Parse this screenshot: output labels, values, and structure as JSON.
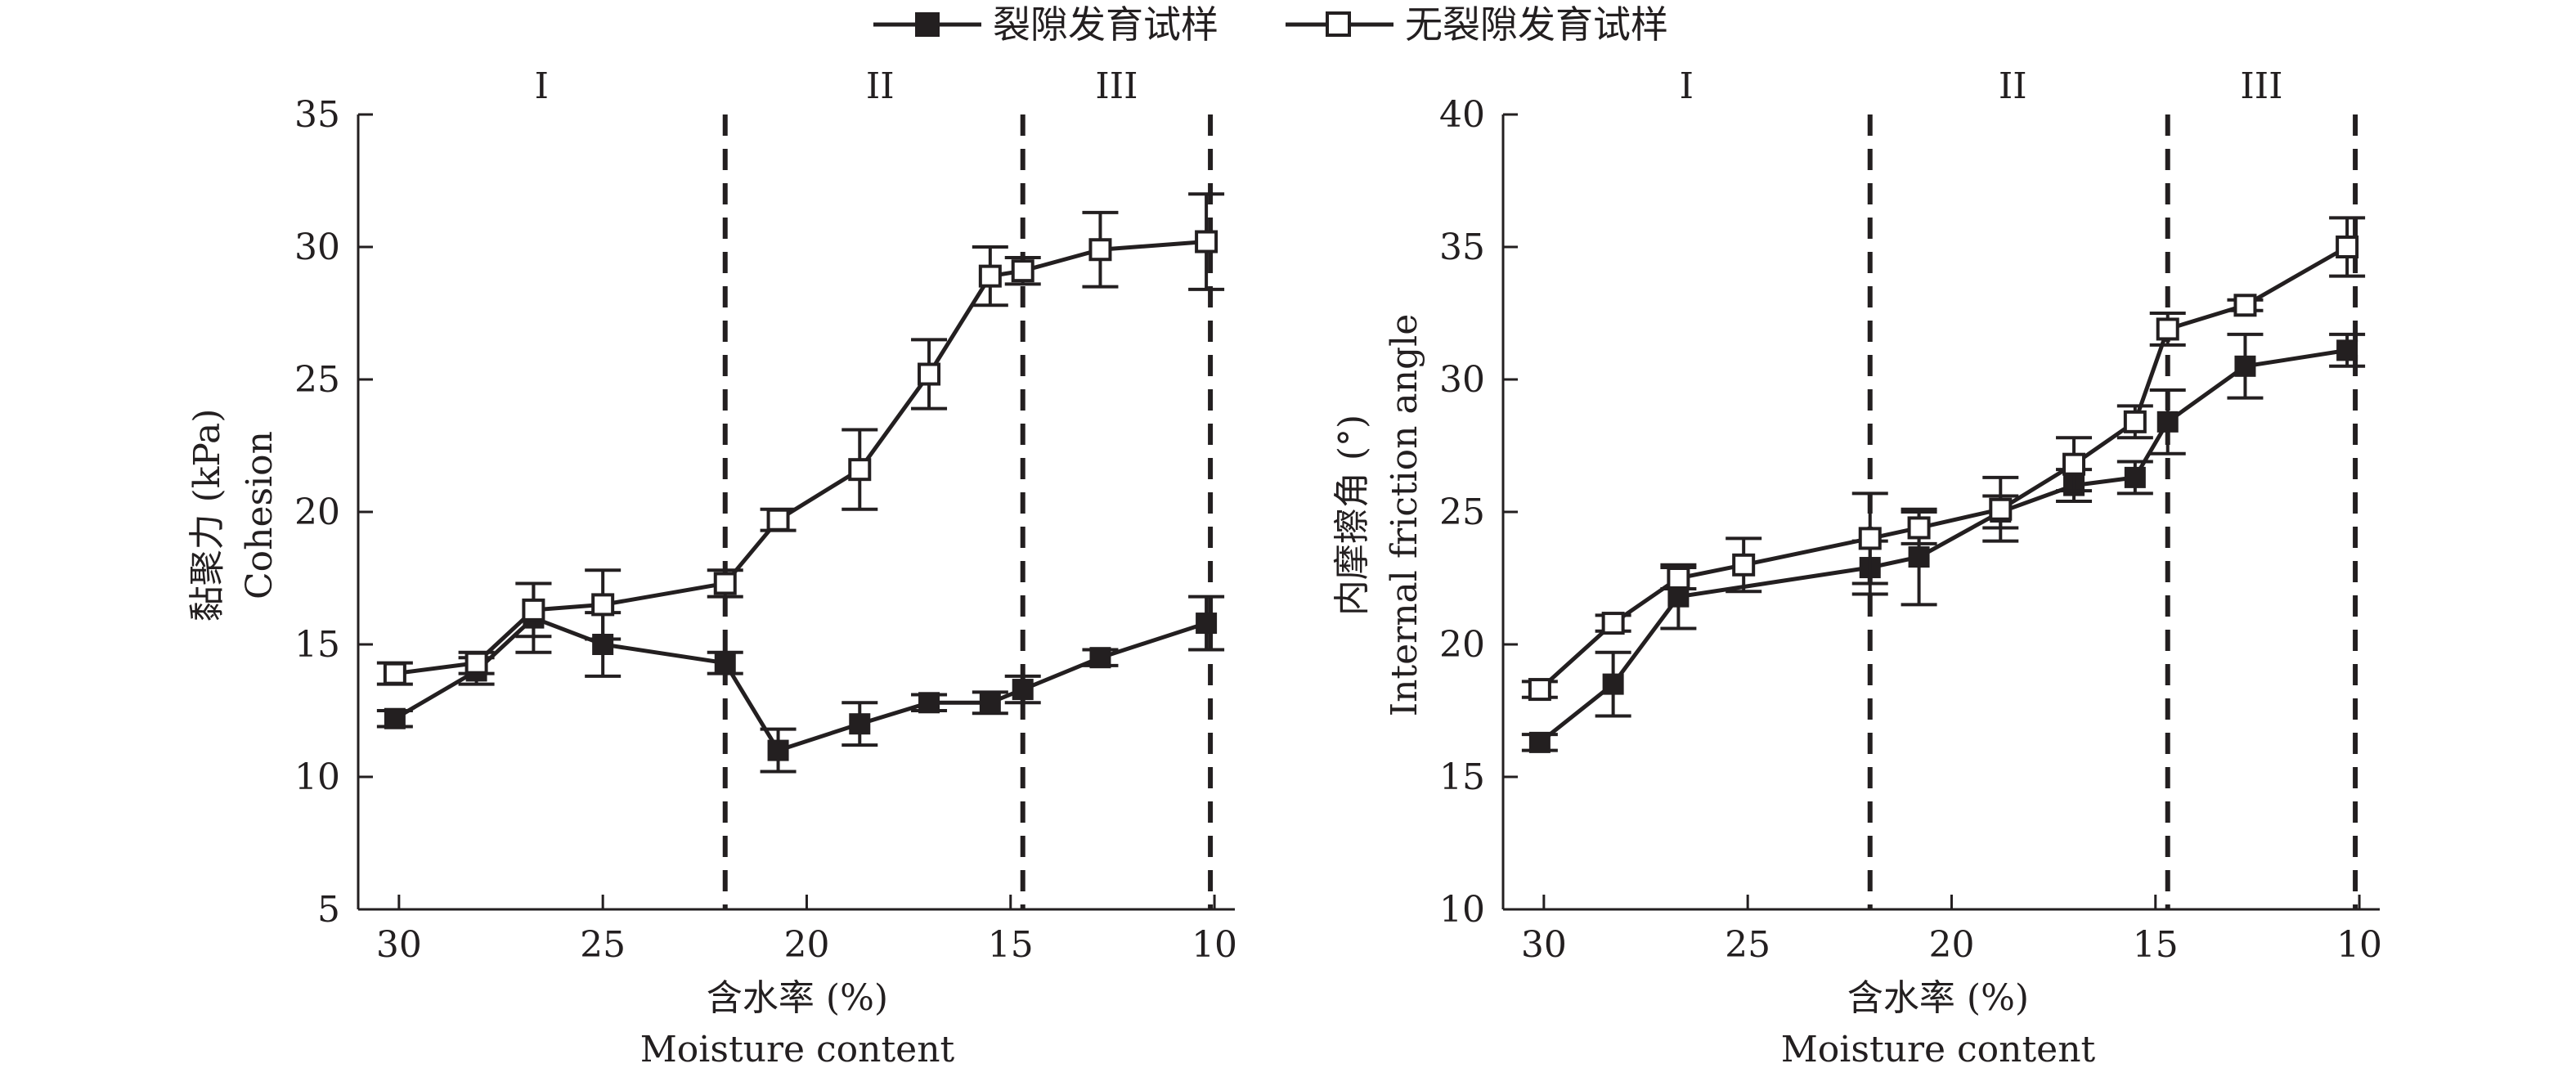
{
  "legend": {
    "cracked_label": "裂隙发育试样",
    "uncracked_label": "无裂隙发育试样"
  },
  "colors": {
    "ink": "#231f20",
    "open_fill": "#ffffff"
  },
  "chart_data": [
    {
      "type": "line",
      "ylabel_cn": "黏聚力 (kPa)",
      "ylabel_en": "Cohesion",
      "xlabel_cn": "含水率 (%)",
      "xlabel_en": "Moisture content",
      "x_reversed": true,
      "xlim": [
        31,
        9.5
      ],
      "ylim": [
        5,
        35
      ],
      "xticks": [
        30,
        25,
        20,
        15,
        10
      ],
      "yticks": [
        5,
        10,
        15,
        20,
        25,
        30,
        35
      ],
      "dividers": [
        22,
        14.7,
        10.1
      ],
      "regions": [
        {
          "label": "I",
          "x": 26.5
        },
        {
          "label": "II",
          "x": 18.2
        },
        {
          "label": "III",
          "x": 12.4
        }
      ],
      "series": [
        {
          "name": "裂隙发育试样",
          "marker": "filled-square",
          "x": [
            30.1,
            28.1,
            26.7,
            25.0,
            22.0,
            20.7,
            18.7,
            17.0,
            15.5,
            14.7,
            12.8,
            10.2
          ],
          "y": [
            12.2,
            14.0,
            16.0,
            15.0,
            14.3,
            11.0,
            12.0,
            12.8,
            12.8,
            13.3,
            14.5,
            15.8
          ],
          "err": [
            0.3,
            0.5,
            1.3,
            1.2,
            0.4,
            0.8,
            0.8,
            0.3,
            0.4,
            0.5,
            0.3,
            1.0
          ]
        },
        {
          "name": "无裂隙发育试样",
          "marker": "open-square",
          "x": [
            30.1,
            28.1,
            26.7,
            25.0,
            22.0,
            20.7,
            18.7,
            17.0,
            15.5,
            14.7,
            12.8,
            10.2
          ],
          "y": [
            13.9,
            14.3,
            16.3,
            16.5,
            17.3,
            19.7,
            21.6,
            25.2,
            28.9,
            29.1,
            29.9,
            30.2
          ],
          "err": [
            0.4,
            0.4,
            1.0,
            1.3,
            0.5,
            0.4,
            1.5,
            1.3,
            1.1,
            0.5,
            1.4,
            1.8
          ]
        }
      ]
    },
    {
      "type": "line",
      "ylabel_cn": "内摩擦角 (°)",
      "ylabel_en": "Internal friction angle",
      "xlabel_cn": "含水率 (%)",
      "xlabel_en": "Moisture content",
      "x_reversed": true,
      "xlim": [
        31,
        9.5
      ],
      "ylim": [
        10,
        40
      ],
      "xticks": [
        30,
        25,
        20,
        15,
        10
      ],
      "yticks": [
        10,
        15,
        20,
        25,
        30,
        35,
        40
      ],
      "dividers": [
        22,
        14.7,
        10.1
      ],
      "regions": [
        {
          "label": "I",
          "x": 26.5
        },
        {
          "label": "II",
          "x": 18.5
        },
        {
          "label": "III",
          "x": 12.4
        }
      ],
      "series": [
        {
          "name": "裂隙发育试样",
          "marker": "filled-square",
          "x": [
            30.1,
            28.3,
            26.7,
            22.0,
            20.8,
            18.8,
            17.0,
            15.5,
            14.7,
            12.8,
            10.3
          ],
          "y": [
            16.3,
            18.5,
            21.8,
            22.9,
            23.3,
            25.0,
            26.0,
            26.3,
            28.4,
            30.5,
            31.1
          ],
          "err": [
            0.3,
            1.2,
            1.2,
            1.0,
            1.8,
            0.6,
            0.6,
            0.6,
            1.2,
            1.2,
            0.6
          ]
        },
        {
          "name": "无裂隙发育试样",
          "marker": "open-square",
          "x": [
            30.1,
            28.3,
            26.7,
            25.1,
            22.0,
            20.8,
            18.8,
            17.0,
            15.5,
            14.7,
            12.8,
            10.3
          ],
          "y": [
            18.3,
            20.8,
            22.5,
            23.0,
            24.0,
            24.4,
            25.1,
            26.8,
            28.4,
            31.9,
            32.8,
            35.0
          ],
          "err": [
            0.3,
            0.3,
            0.4,
            1.0,
            1.7,
            0.6,
            1.2,
            1.0,
            0.6,
            0.6,
            0.2,
            1.1
          ]
        }
      ]
    }
  ]
}
